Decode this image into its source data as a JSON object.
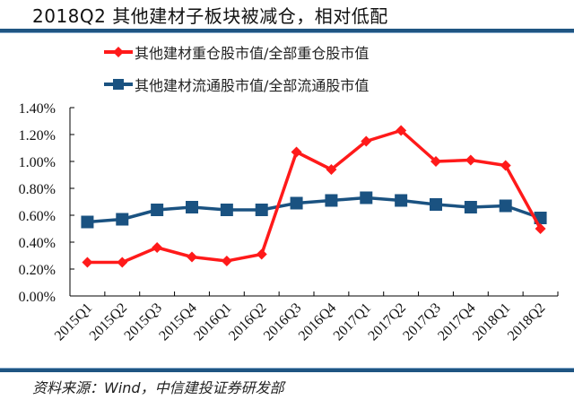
{
  "title": "2018Q2 其他建材子板块被减仓，相对低配",
  "source": "资料来源：Wind，中信建投证券研发部",
  "colors": {
    "series1": "#ff1a1a",
    "series2": "#1a5281",
    "rule": "#1f5582"
  },
  "legend": [
    {
      "label": "其他建材重仓股市值/全部重仓股市值",
      "marker": "diamond"
    },
    {
      "label": "其他建材流通股市值/全部流通股市值",
      "marker": "square"
    }
  ],
  "chart_data": {
    "type": "line",
    "title": "2018Q2 其他建材子板块被减仓，相对低配",
    "xlabel": "",
    "ylabel": "",
    "categories": [
      "2015Q1",
      "2015Q2",
      "2015Q3",
      "2015Q4",
      "2016Q1",
      "2016Q2",
      "2016Q3",
      "2016Q4",
      "2017Q1",
      "2017Q2",
      "2017Q3",
      "2017Q4",
      "2018Q1",
      "2018Q2"
    ],
    "series": [
      {
        "name": "其他建材重仓股市值/全部重仓股市值",
        "color": "#ff1a1a",
        "marker": "diamond",
        "values": [
          0.25,
          0.25,
          0.36,
          0.29,
          0.26,
          0.31,
          1.07,
          0.94,
          1.15,
          1.23,
          1.0,
          1.01,
          0.97,
          0.5
        ]
      },
      {
        "name": "其他建材流通股市值/全部流通股市值",
        "color": "#1a5281",
        "marker": "square",
        "values": [
          0.55,
          0.57,
          0.64,
          0.66,
          0.64,
          0.64,
          0.69,
          0.71,
          0.73,
          0.71,
          0.68,
          0.66,
          0.67,
          0.58
        ]
      }
    ],
    "ylim": [
      0,
      1.4
    ],
    "yticks": [
      "0.00%",
      "0.20%",
      "0.40%",
      "0.60%",
      "0.80%",
      "1.00%",
      "1.20%",
      "1.40%"
    ],
    "value_unit": "%",
    "grid": false,
    "legend_position": "top"
  }
}
